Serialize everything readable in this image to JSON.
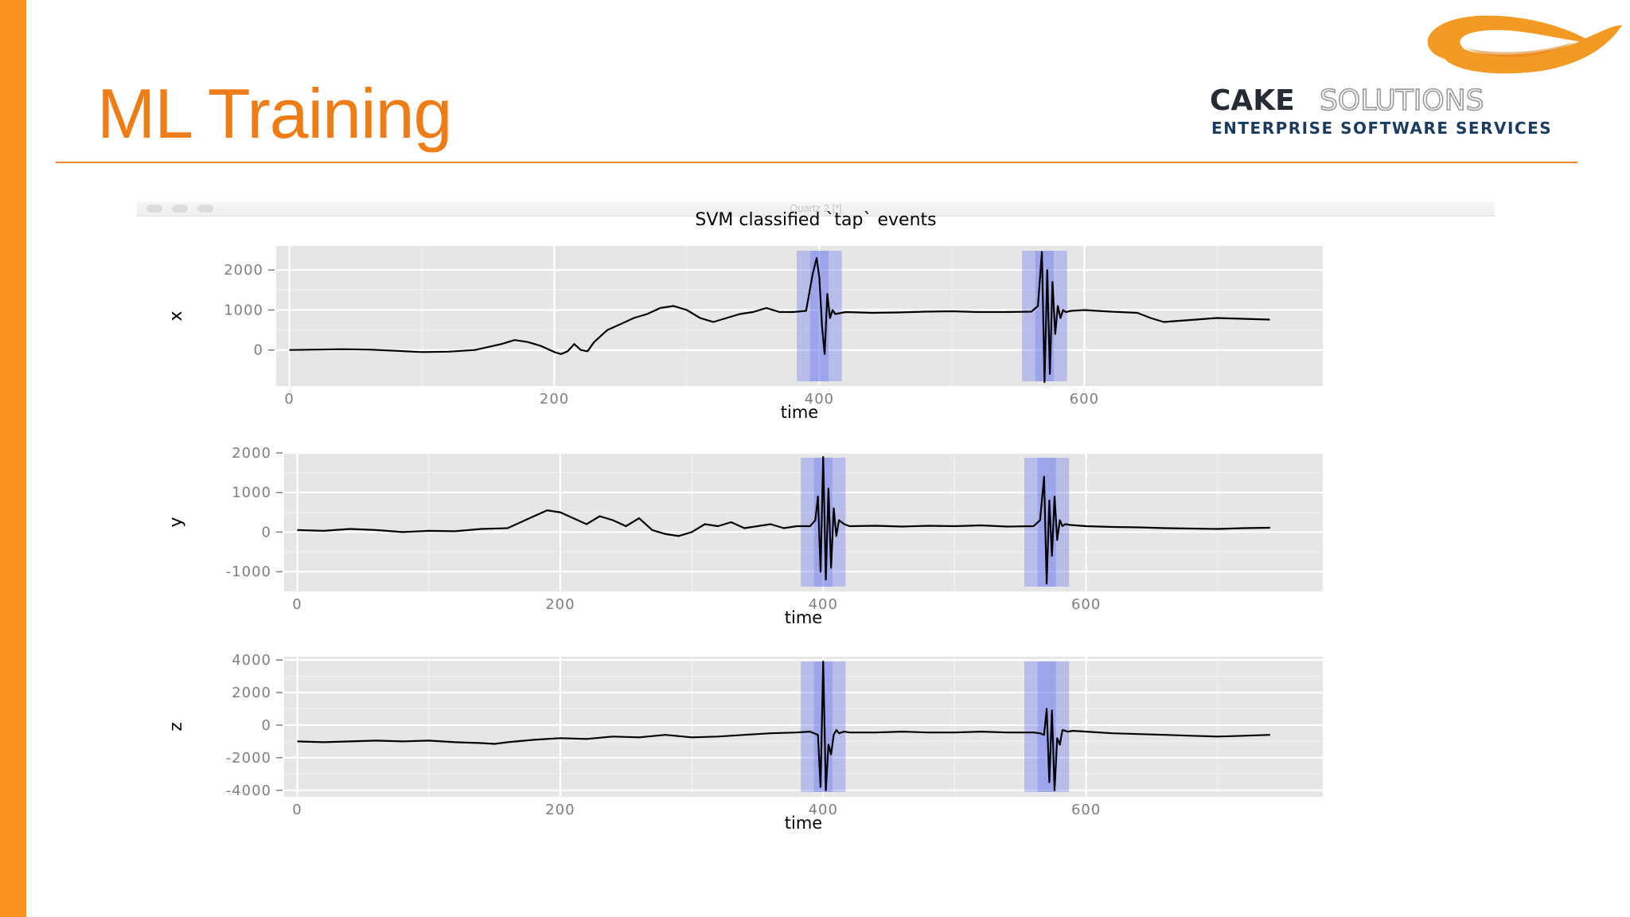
{
  "slide": {
    "title": "ML Training",
    "accent_color": "#f7931e",
    "title_color": "#ef7d17"
  },
  "logo": {
    "name_bold": "CAKE",
    "name_light": "SOLUTIONS",
    "tagline": "ENTERPRISE SOFTWARE SERVICES",
    "swoosh_color": "#f39a25",
    "text_color": "#262b33",
    "tagline_color": "#1b3c5f",
    "light_text_color": "#97999b"
  },
  "window": {
    "title": "Quartz 2 [*]"
  },
  "chart_data": {
    "type": "line",
    "title": "SVM classified `tap` events",
    "xlabel": "time",
    "xlim": [
      -10,
      780
    ],
    "x_ticks": [
      0,
      200,
      400,
      600
    ],
    "grid": true,
    "panel_color": "#e6e6e6",
    "line_color": "#000000",
    "highlight_color": "#6c7aee",
    "highlight_regions": [
      {
        "outer": [
          383,
          417
        ],
        "inner": [
          393,
          407
        ]
      },
      {
        "outer": [
          553,
          587
        ],
        "inner": [
          563,
          577
        ]
      }
    ],
    "panels": [
      {
        "ylabel": "x",
        "ylim": [
          -900,
          2600
        ],
        "y_ticks": [
          0,
          1000,
          2000
        ],
        "x": [
          0,
          20,
          40,
          60,
          80,
          100,
          120,
          140,
          160,
          170,
          180,
          190,
          200,
          205,
          210,
          215,
          220,
          225,
          230,
          240,
          250,
          260,
          270,
          280,
          290,
          300,
          310,
          320,
          330,
          340,
          350,
          360,
          370,
          380,
          390,
          395,
          398,
          400,
          402,
          404,
          406,
          408,
          410,
          412,
          420,
          440,
          460,
          480,
          500,
          520,
          540,
          560,
          565,
          568,
          570,
          572,
          574,
          576,
          578,
          580,
          582,
          584,
          586,
          590,
          600,
          620,
          640,
          650,
          660,
          680,
          700,
          720,
          740
        ],
        "values": [
          0,
          10,
          20,
          10,
          -20,
          -50,
          -40,
          0,
          150,
          250,
          200,
          100,
          -50,
          -100,
          -30,
          150,
          0,
          -30,
          200,
          500,
          650,
          800,
          900,
          1050,
          1100,
          1000,
          800,
          700,
          800,
          900,
          950,
          1050,
          950,
          950,
          980,
          1900,
          2300,
          1800,
          600,
          -100,
          1400,
          800,
          1000,
          900,
          950,
          930,
          940,
          960,
          970,
          950,
          950,
          960,
          1100,
          2450,
          -800,
          2000,
          -600,
          1700,
          400,
          1100,
          800,
          1000,
          950,
          980,
          1000,
          960,
          930,
          800,
          700,
          750,
          800,
          780,
          760
        ]
      },
      {
        "ylabel": "y",
        "ylim": [
          -1500,
          2000
        ],
        "y_ticks": [
          -1000,
          0,
          1000,
          2000
        ],
        "x": [
          0,
          20,
          40,
          60,
          80,
          100,
          120,
          140,
          160,
          180,
          190,
          200,
          210,
          220,
          230,
          240,
          250,
          260,
          270,
          280,
          290,
          300,
          310,
          320,
          330,
          340,
          350,
          360,
          370,
          380,
          390,
          394,
          396,
          398,
          400,
          402,
          404,
          406,
          408,
          410,
          412,
          416,
          420,
          440,
          460,
          480,
          500,
          520,
          540,
          560,
          565,
          568,
          570,
          572,
          574,
          576,
          578,
          580,
          582,
          584,
          588,
          600,
          620,
          640,
          660,
          680,
          700,
          720,
          740
        ],
        "values": [
          50,
          30,
          80,
          50,
          0,
          30,
          20,
          80,
          100,
          400,
          550,
          500,
          350,
          200,
          400,
          300,
          150,
          350,
          50,
          -50,
          -100,
          0,
          200,
          150,
          250,
          100,
          150,
          200,
          100,
          150,
          150,
          300,
          900,
          -1000,
          1900,
          -1200,
          1100,
          -900,
          600,
          -100,
          300,
          200,
          150,
          160,
          140,
          160,
          150,
          170,
          140,
          150,
          300,
          1400,
          -1300,
          800,
          -600,
          900,
          -200,
          300,
          150,
          200,
          180,
          150,
          130,
          120,
          100,
          90,
          80,
          100,
          110
        ]
      },
      {
        "ylabel": "z",
        "ylim": [
          -4400,
          4200
        ],
        "y_ticks": [
          -4000,
          -2000,
          0,
          2000,
          4000
        ],
        "x": [
          0,
          20,
          40,
          60,
          80,
          100,
          120,
          140,
          150,
          160,
          180,
          200,
          220,
          240,
          260,
          280,
          300,
          320,
          340,
          360,
          380,
          390,
          396,
          398,
          400,
          402,
          404,
          406,
          408,
          410,
          412,
          416,
          420,
          440,
          460,
          480,
          500,
          520,
          540,
          560,
          565,
          568,
          570,
          572,
          574,
          576,
          578,
          580,
          582,
          586,
          590,
          600,
          620,
          640,
          660,
          680,
          700,
          720,
          740
        ],
        "values": [
          -1000,
          -1050,
          -1000,
          -950,
          -1000,
          -950,
          -1050,
          -1100,
          -1150,
          -1050,
          -900,
          -800,
          -850,
          -700,
          -750,
          -600,
          -750,
          -700,
          -600,
          -500,
          -450,
          -400,
          -600,
          -3800,
          3900,
          -4000,
          -1200,
          -1800,
          -600,
          -300,
          -500,
          -400,
          -450,
          -450,
          -400,
          -450,
          -450,
          -400,
          -450,
          -450,
          -500,
          -600,
          1000,
          -3500,
          900,
          -4000,
          -800,
          -1200,
          -300,
          -400,
          -350,
          -400,
          -500,
          -550,
          -600,
          -650,
          -700,
          -650,
          -600
        ]
      }
    ]
  }
}
